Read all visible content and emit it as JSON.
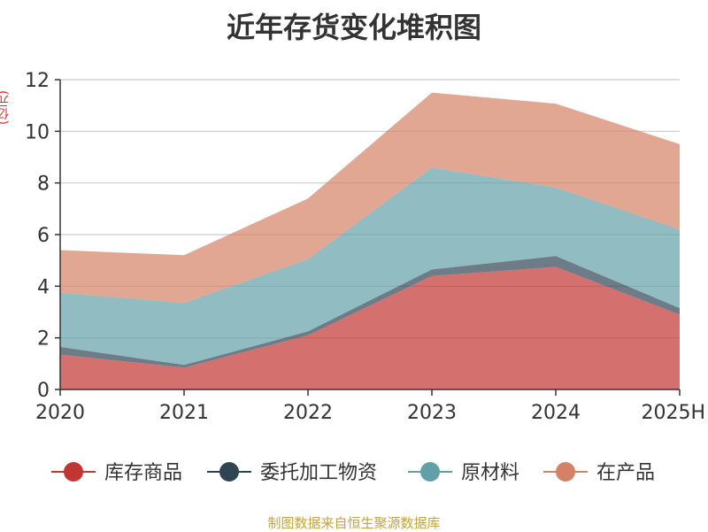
{
  "chart_data": {
    "type": "area",
    "stacked": true,
    "title": "近年存货变化堆积图",
    "unit_label": "(亿元)",
    "x": [
      "2020",
      "2021",
      "2022",
      "2023",
      "2024",
      "2025H"
    ],
    "ylim": [
      0,
      12
    ],
    "yticks": [
      0,
      2,
      4,
      6,
      8,
      10,
      12
    ],
    "grid": true,
    "legend_position": "bottom",
    "series": [
      {
        "name": "库存商品",
        "color": "#c23531",
        "values": [
          1.35,
          0.85,
          2.1,
          4.4,
          4.75,
          2.9
        ]
      },
      {
        "name": "委托加工物资",
        "color": "#2f4554",
        "values": [
          0.3,
          0.1,
          0.15,
          0.25,
          0.42,
          0.25
        ]
      },
      {
        "name": "原材料",
        "color": "#61a0a8",
        "values": [
          2.1,
          2.4,
          2.8,
          3.95,
          2.65,
          3.05
        ]
      },
      {
        "name": "在产品",
        "color": "#d48265",
        "values": [
          1.65,
          1.85,
          2.35,
          2.9,
          3.25,
          3.3
        ]
      }
    ]
  },
  "footer": {
    "source": "制图数据来自恒生聚源数据库"
  }
}
